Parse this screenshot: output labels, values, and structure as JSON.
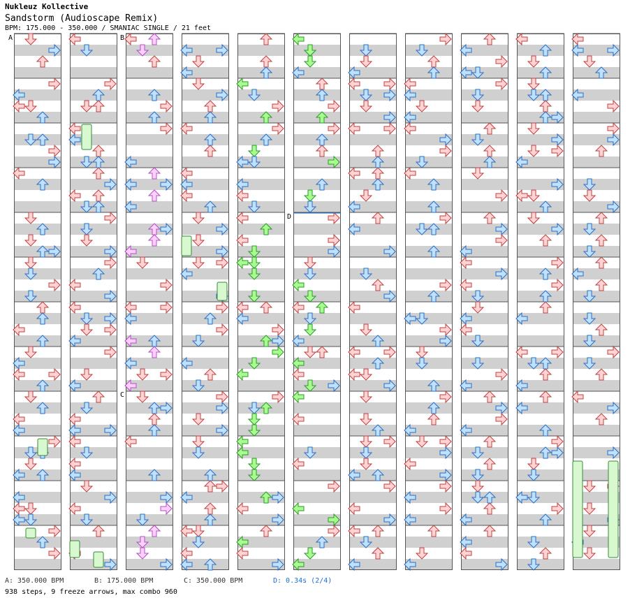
{
  "header": {
    "artist": "Nukleuz Kollective",
    "title": "Sandstorm (Audioscape Remix)",
    "info": "BPM: 175.000 - 350.000 / SMANIAC SINGLE / 21 feet"
  },
  "legend": {
    "a": "A: 350.000 BPM",
    "b": "B: 175.000 BPM",
    "c": "C: 350.000 BPM",
    "d": "D: 0.34s (2/4)"
  },
  "stats": "938 steps, 9 freeze arrows, max combo 960",
  "markers": [
    "A",
    "B",
    "C",
    "D"
  ],
  "colors": {
    "red_fill": "#ffd4d4",
    "red_stroke": "#c04040",
    "blue_fill": "#bfe0ff",
    "blue_stroke": "#2a6fc0",
    "green_fill": "#a8ff90",
    "green_stroke": "#2a9a2a",
    "pink_fill": "#ffd0ff",
    "pink_stroke": "#b050c0",
    "freeze_fill": "#d8f8d0",
    "freeze_stroke": "#3a8a3a",
    "stripe": "#d0d0d0",
    "border": "#555555"
  },
  "icons": [
    "arrow-left-icon",
    "arrow-down-icon",
    "arrow-up-icon",
    "arrow-right-icon"
  ],
  "chart_data": {
    "type": "step-chart",
    "columns": 11,
    "measures_per_column": 12,
    "steps": 938,
    "freeze_arrows": 9,
    "max_combo": 960
  }
}
